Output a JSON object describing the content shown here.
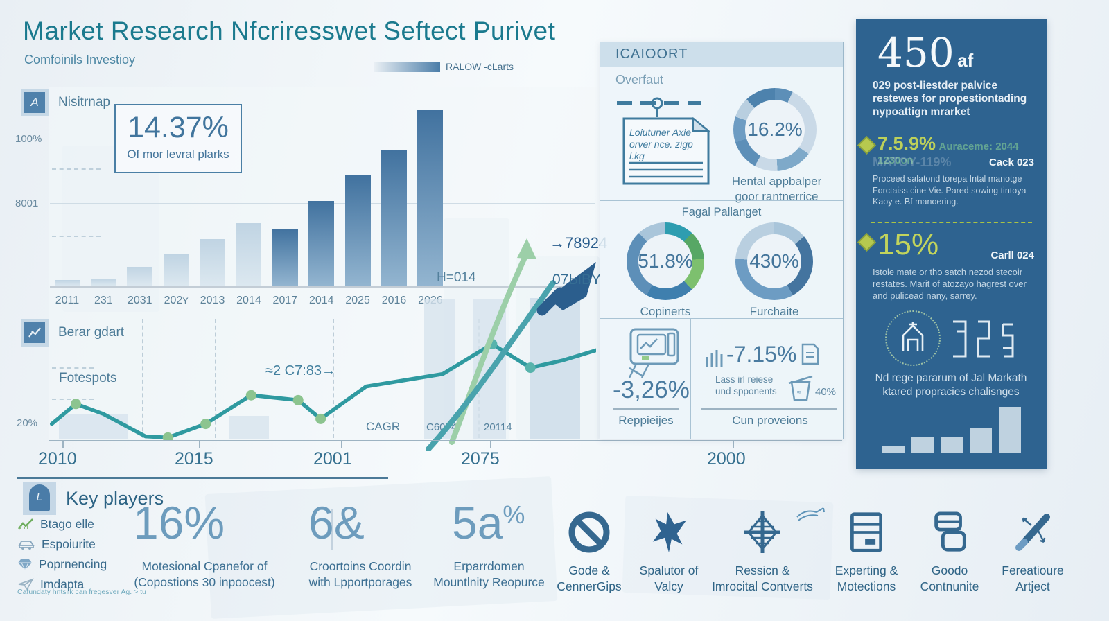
{
  "header": {
    "title": "Market Research Nfcriresswet Seftect Purivet",
    "subtitle": "Comfoinils Investioy",
    "legend_label": "RALOW -cLarts"
  },
  "bar_chart": {
    "label": "Nisitrnap",
    "icon_letter": "A",
    "stat_value": "14.37%",
    "stat_caption": "Of mor levral plarks",
    "y_tick_top": "100%",
    "y_tick_mid": "8001",
    "right_note": "H=014"
  },
  "line_chart": {
    "label": "Berar gdart",
    "series_label": "Fotespots",
    "y_tick": "20%",
    "annotation": "≈2 C7:83→",
    "arrow_value": "→78924",
    "arrow_caption": "07ЫBY",
    "inline_label_1": "CAGR",
    "inline_label_2": "C6074",
    "inline_label_3": "20114",
    "x_ticks": [
      "2010",
      "2015",
      "2001",
      "2075",
      "2000"
    ]
  },
  "report_panel": {
    "header": "ICAIOORT",
    "section1_title": "Overfaut",
    "doc_note_line1": "Loiutuner Axie",
    "doc_note_line2": "orver nce. zigp",
    "doc_note_line3": "l.kg",
    "donut1_value": "16.2%",
    "donut1_caption_line1": "Hental appbalper",
    "donut1_caption_line2": "goor rantnerrice",
    "section2_title": "Fagal Pallanget",
    "donut2_value": "51.8%",
    "donut2_caption": "Copinerts",
    "donut3_value": "430%",
    "donut3_caption": "Furchaite",
    "cell1_value": "-3,26%",
    "cell1_caption": "Reppieijes",
    "cell2_value": "-7.15%",
    "cell2_note_line1": "Lass irl reiese",
    "cell2_note_line2": "und spponents",
    "cell2_pct": "40%",
    "cell2_caption": "Cun proveions"
  },
  "sidebar": {
    "headline_value": "450",
    "headline_suffix": "af",
    "intro": "029 post-liestder palvice restewes for propestiontading nypoattign mrarket",
    "item1": {
      "value": "7.5.9%",
      "value_note": "Auraceme: 2044 1230on",
      "ghost": "MATOY-119%",
      "tag": "Cack 023",
      "body": "Proceed salatond torepa Intal manotge Forctaiss cine Vie. Pared sowing tintoya Kaoy e. Bf manoering."
    },
    "item2": {
      "value": "15%",
      "tag": "Carll 024",
      "body": "Istole mate or tho satch nezod stecoir restates. Marit of atozayo hagrest over and pulicead nany, sarrey."
    },
    "footer_line1": "Nd rege pararum of Jal Markath",
    "footer_line2": "ktared propracies chalisnges"
  },
  "key_players": {
    "heading": "Key players",
    "items": [
      {
        "label": "Btago elle"
      },
      {
        "label": "Espoiurite"
      },
      {
        "label": "Poprnencing"
      },
      {
        "label": "Imdapta"
      }
    ],
    "footnote": "Cafundaty hntsiik can fregesver Ag. > tu",
    "stats": [
      {
        "value": "16%",
        "caption_line1": "Motesional Cpanefor of",
        "caption_line2": "(Copostions 30 inpoocest)"
      },
      {
        "value": "6&",
        "caption_line1": "Croortoins Coordin",
        "caption_line2": "with Lpportporages"
      },
      {
        "value": "5a",
        "value_suffix": "%",
        "caption_line1": "Erparrdomen",
        "caption_line2": "Mountlnity Reopurce"
      }
    ],
    "services": [
      {
        "icon": "no-sign-icon",
        "label_line1": "Gode &",
        "label_line2": "CennerGips"
      },
      {
        "icon": "star-burst-icon",
        "label_line1": "Spalutor of",
        "label_line2": "Valcy"
      },
      {
        "icon": "ornate-cross-icon",
        "label_line1": "Ressicn &",
        "label_line2": "Imrocital Contverts"
      },
      {
        "icon": "server-icon",
        "label_line1": "Experting &",
        "label_line2": "Motections"
      },
      {
        "icon": "cards-icon",
        "label_line1": "Goodo",
        "label_line2": "Contnunite"
      },
      {
        "icon": "pen-arrow-icon",
        "label_line1": "Fereatioure",
        "label_line2": "Artject"
      }
    ]
  },
  "colors": {
    "accent_teal": "#1b7a8e",
    "bar_dark": "#4a7da8",
    "bar_light": "#c9dae7",
    "line_teal": "#2f9aa0",
    "dot_green": "#8cc48f",
    "sidebar_bg": "#2e6390",
    "sidebar_accent": "#bcd05a"
  },
  "chart_data": [
    {
      "type": "bar",
      "title": "Nisitrnap",
      "categories": [
        "2011",
        "231",
        "2031",
        "202ʏ",
        "2013",
        "2014",
        "2017",
        "2014",
        "2025",
        "2016",
        "2026"
      ],
      "values": [
        3,
        4,
        10,
        16,
        24,
        32,
        29,
        43,
        56,
        69,
        89
      ],
      "unit": "percent of plot height (source axis garbled)",
      "dark_from_index": 6,
      "y_ticks": [
        "100%",
        "8001"
      ]
    },
    {
      "type": "line",
      "title": "Berar gdart",
      "x": [
        0.6,
        5,
        10,
        17.7,
        21.8,
        28.7,
        37,
        45.6,
        49.7,
        58,
        65,
        72,
        81,
        88,
        94,
        100
      ],
      "y": [
        87,
        71,
        79,
        97,
        98,
        87,
        64,
        68,
        83,
        57,
        52,
        47,
        23,
        42,
        36,
        28
      ],
      "dot_indices": [
        1,
        4,
        5,
        6,
        7,
        8,
        12,
        13
      ],
      "x_ticks": [
        "2010",
        "2015",
        "2001",
        "2075",
        "2000"
      ],
      "y_ticks": [
        "20%"
      ]
    },
    {
      "type": "donut",
      "label": "Hental appbalper goor rantnerrice",
      "value": "16.2%",
      "segments": [
        {
          "color": "#5d8fb8",
          "pct": 7
        },
        {
          "color": "#c9d9e7",
          "pct": 28
        },
        {
          "color": "#7ea9c9",
          "pct": 14
        },
        {
          "color": "#c9d9e7",
          "pct": 9
        },
        {
          "color": "#5d8fb8",
          "pct": 12
        },
        {
          "color": "#6d9cc3",
          "pct": 10
        },
        {
          "color": "#b9cfe0",
          "pct": 8
        },
        {
          "color": "#4d82ad",
          "pct": 12
        }
      ]
    },
    {
      "type": "donut",
      "label": "Copinerts",
      "value": "51.8%",
      "segments": [
        {
          "color": "#2e9db0",
          "pct": 12
        },
        {
          "color": "#57a765",
          "pct": 12
        },
        {
          "color": "#7dc06e",
          "pct": 14
        },
        {
          "color": "#3f7fae",
          "pct": 20
        },
        {
          "color": "#5d8fb8",
          "pct": 30
        },
        {
          "color": "#a9c5da",
          "pct": 12
        }
      ]
    },
    {
      "type": "donut",
      "label": "Furchaite",
      "value": "430%",
      "segments": [
        {
          "color": "#a9c5da",
          "pct": 14
        },
        {
          "color": "#44749f",
          "pct": 28
        },
        {
          "color": "#6d9cc3",
          "pct": 34
        },
        {
          "color": "#b9cfe0",
          "pct": 24
        }
      ]
    },
    {
      "type": "bar",
      "title": "sidebar-mini-trend",
      "categories": [
        "1",
        "2",
        "3",
        "4",
        "5"
      ],
      "values": [
        13,
        33,
        33,
        48,
        90
      ]
    }
  ]
}
